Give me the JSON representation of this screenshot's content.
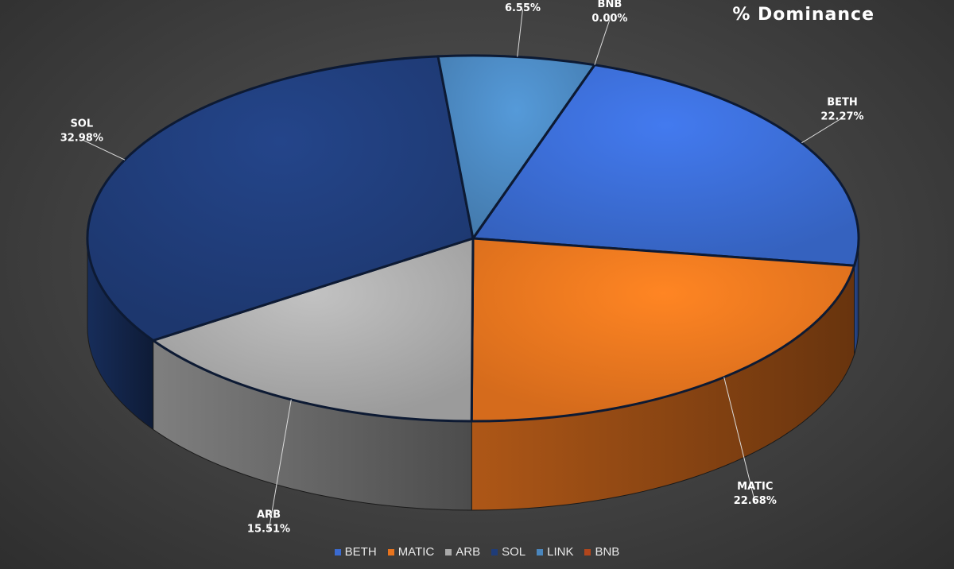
{
  "chart_data": {
    "type": "pie",
    "title": "% Dominance",
    "slices": [
      {
        "label": "BETH",
        "value": 22.27,
        "value_label": "22.27%",
        "color": "#3a6ad0"
      },
      {
        "label": "MATIC",
        "value": 22.68,
        "value_label": "22.68%",
        "color": "#e8741e"
      },
      {
        "label": "ARB",
        "value": 15.51,
        "value_label": "15.51%",
        "color": "#a9a9a9"
      },
      {
        "label": "SOL",
        "value": 32.98,
        "value_label": "32.98%",
        "color": "#1f3c78"
      },
      {
        "label": "LINK",
        "value": 6.55,
        "value_label": "6.55%",
        "color": "#4a86bd"
      },
      {
        "label": "BNB",
        "value": 0.0,
        "value_label": "0.00%",
        "color": "#b2461c"
      }
    ],
    "legend_position": "bottom",
    "three_d": true
  }
}
